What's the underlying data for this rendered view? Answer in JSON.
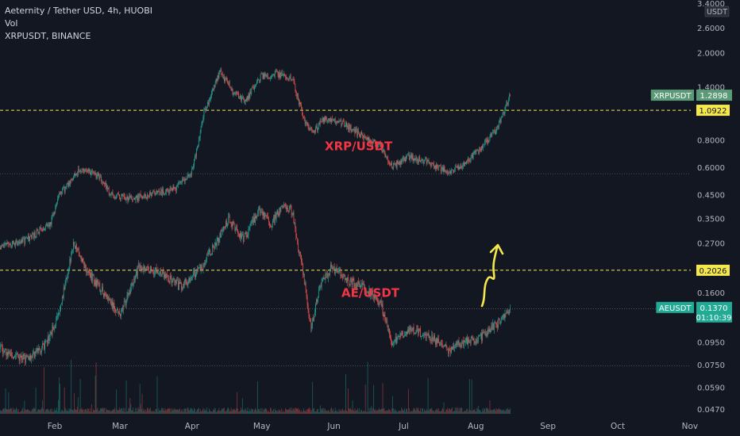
{
  "legend": {
    "main_symbol": "Aeternity / Tether USD, 4h, HUOBI",
    "volume": "Vol",
    "compare_symbol": "XRPUSDT, BINANCE"
  },
  "chart_data": {
    "type": "candlestick",
    "y_scale": "log",
    "ylim": [
      0.0447,
      3.4
    ],
    "axis_unit": "USDT",
    "y_ticks": [
      "2.6000",
      "2.0000",
      "1.4000",
      "0.8000",
      "0.6000",
      "0.4500",
      "0.3500",
      "0.2700",
      "0.1600",
      "0.0950",
      "0.0750",
      "0.0590",
      "0.0470"
    ],
    "y_top_label": "3.4000",
    "x_ticks": [
      "Feb",
      "Mar",
      "Apr",
      "May",
      "Jun",
      "Jul",
      "Aug",
      "Sep",
      "Oct",
      "Nov"
    ],
    "series": [
      {
        "name": "AE/USDT",
        "symbol": "AEUSDT",
        "color": "#f23645",
        "last_price": "0.1370",
        "countdown": "01:10:39",
        "key_points": [
          [
            "2020-12-25",
            0.105
          ],
          [
            "2021-01-01",
            0.1
          ],
          [
            "2021-01-11",
            0.085
          ],
          [
            "2021-01-20",
            0.08
          ],
          [
            "2021-01-28",
            0.092
          ],
          [
            "2021-02-03",
            0.13
          ],
          [
            "2021-02-09",
            0.27
          ],
          [
            "2021-02-15",
            0.2
          ],
          [
            "2021-02-22",
            0.16
          ],
          [
            "2021-03-01",
            0.125
          ],
          [
            "2021-03-09",
            0.21
          ],
          [
            "2021-03-18",
            0.2
          ],
          [
            "2021-03-27",
            0.17
          ],
          [
            "2021-04-05",
            0.21
          ],
          [
            "2021-04-13",
            0.29
          ],
          [
            "2021-04-17",
            0.35
          ],
          [
            "2021-04-23",
            0.28
          ],
          [
            "2021-04-30",
            0.38
          ],
          [
            "2021-05-05",
            0.33
          ],
          [
            "2021-05-10",
            0.4
          ],
          [
            "2021-05-14",
            0.38
          ],
          [
            "2021-05-19",
            0.19
          ],
          [
            "2021-05-22",
            0.11
          ],
          [
            "2021-05-26",
            0.17
          ],
          [
            "2021-05-31",
            0.21
          ],
          [
            "2021-06-08",
            0.18
          ],
          [
            "2021-06-14",
            0.17
          ],
          [
            "2021-06-21",
            0.145
          ],
          [
            "2021-06-26",
            0.093
          ],
          [
            "2021-07-03",
            0.11
          ],
          [
            "2021-07-13",
            0.1
          ],
          [
            "2021-07-20",
            0.088
          ],
          [
            "2021-07-28",
            0.097
          ],
          [
            "2021-08-03",
            0.1
          ],
          [
            "2021-08-10",
            0.115
          ],
          [
            "2021-08-16",
            0.137
          ]
        ]
      },
      {
        "name": "XRP/USDT",
        "symbol": "XRPUSDT",
        "color": "#4caf50",
        "last_price": "1.2898",
        "key_points": [
          [
            "2020-12-25",
            0.32
          ],
          [
            "2021-01-01",
            0.24
          ],
          [
            "2021-01-10",
            0.26
          ],
          [
            "2021-01-20",
            0.28
          ],
          [
            "2021-01-30",
            0.33
          ],
          [
            "2021-02-03",
            0.45
          ],
          [
            "2021-02-12",
            0.59
          ],
          [
            "2021-02-20",
            0.55
          ],
          [
            "2021-02-25",
            0.45
          ],
          [
            "2021-03-05",
            0.43
          ],
          [
            "2021-03-15",
            0.45
          ],
          [
            "2021-03-25",
            0.48
          ],
          [
            "2021-04-01",
            0.57
          ],
          [
            "2021-04-06",
            1.05
          ],
          [
            "2021-04-13",
            1.65
          ],
          [
            "2021-04-18",
            1.35
          ],
          [
            "2021-04-24",
            1.2
          ],
          [
            "2021-04-30",
            1.55
          ],
          [
            "2021-05-07",
            1.6
          ],
          [
            "2021-05-14",
            1.55
          ],
          [
            "2021-05-19",
            1.0
          ],
          [
            "2021-05-23",
            0.85
          ],
          [
            "2021-05-27",
            1.0
          ],
          [
            "2021-06-05",
            0.95
          ],
          [
            "2021-06-12",
            0.85
          ],
          [
            "2021-06-21",
            0.75
          ],
          [
            "2021-06-26",
            0.6
          ],
          [
            "2021-07-03",
            0.67
          ],
          [
            "2021-07-12",
            0.63
          ],
          [
            "2021-07-20",
            0.57
          ],
          [
            "2021-07-27",
            0.62
          ],
          [
            "2021-08-03",
            0.73
          ],
          [
            "2021-08-10",
            0.9
          ],
          [
            "2021-08-16",
            1.29
          ]
        ]
      }
    ],
    "levels": [
      {
        "value": 1.0922,
        "label": "1.0922",
        "color": "#f5e84c"
      },
      {
        "value": 0.2026,
        "label": "0.2026",
        "color": "#f5e84c"
      }
    ],
    "dotted_lines": [
      0.56,
      0.135,
      0.074
    ],
    "annotations": [
      {
        "text": "XRP/USDT",
        "color": "#f23645"
      },
      {
        "text": "AE/USDT",
        "color": "#f23645"
      }
    ],
    "volume_note": "Vol histogram at bottom (green up / red down)"
  }
}
